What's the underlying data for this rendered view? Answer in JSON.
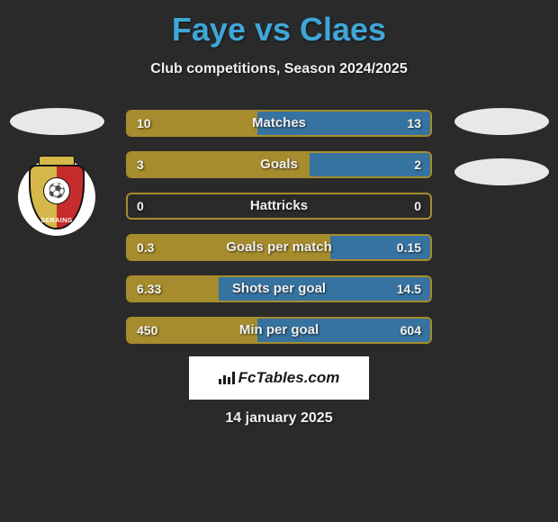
{
  "title": "Faye vs Claes",
  "subtitle": "Club competitions, Season 2024/2025",
  "date": "14 january 2025",
  "logo_text": "FcTables.com",
  "colors": {
    "left": "#a68c2d",
    "right": "#3773a0",
    "title": "#3fa6d8",
    "text": "#f0f0f0",
    "background": "#2a2a2a"
  },
  "stats": [
    {
      "label": "Matches",
      "left_val": "10",
      "right_val": "13",
      "left_pct": 43,
      "right_pct": 57
    },
    {
      "label": "Goals",
      "left_val": "3",
      "right_val": "2",
      "left_pct": 60,
      "right_pct": 40
    },
    {
      "label": "Hattricks",
      "left_val": "0",
      "right_val": "0",
      "left_pct": 0,
      "right_pct": 0
    },
    {
      "label": "Goals per match",
      "left_val": "0.3",
      "right_val": "0.15",
      "left_pct": 67,
      "right_pct": 33
    },
    {
      "label": "Shots per goal",
      "left_val": "6.33",
      "right_val": "14.5",
      "left_pct": 30,
      "right_pct": 70
    },
    {
      "label": "Min per goal",
      "left_val": "450",
      "right_val": "604",
      "left_pct": 43,
      "right_pct": 57
    }
  ],
  "left_player": {
    "badge_text": "SERAING"
  },
  "fonts": {
    "title_size": 36,
    "subtitle_size": 16,
    "bar_label_size": 15,
    "bar_val_size": 14,
    "date_size": 16
  }
}
